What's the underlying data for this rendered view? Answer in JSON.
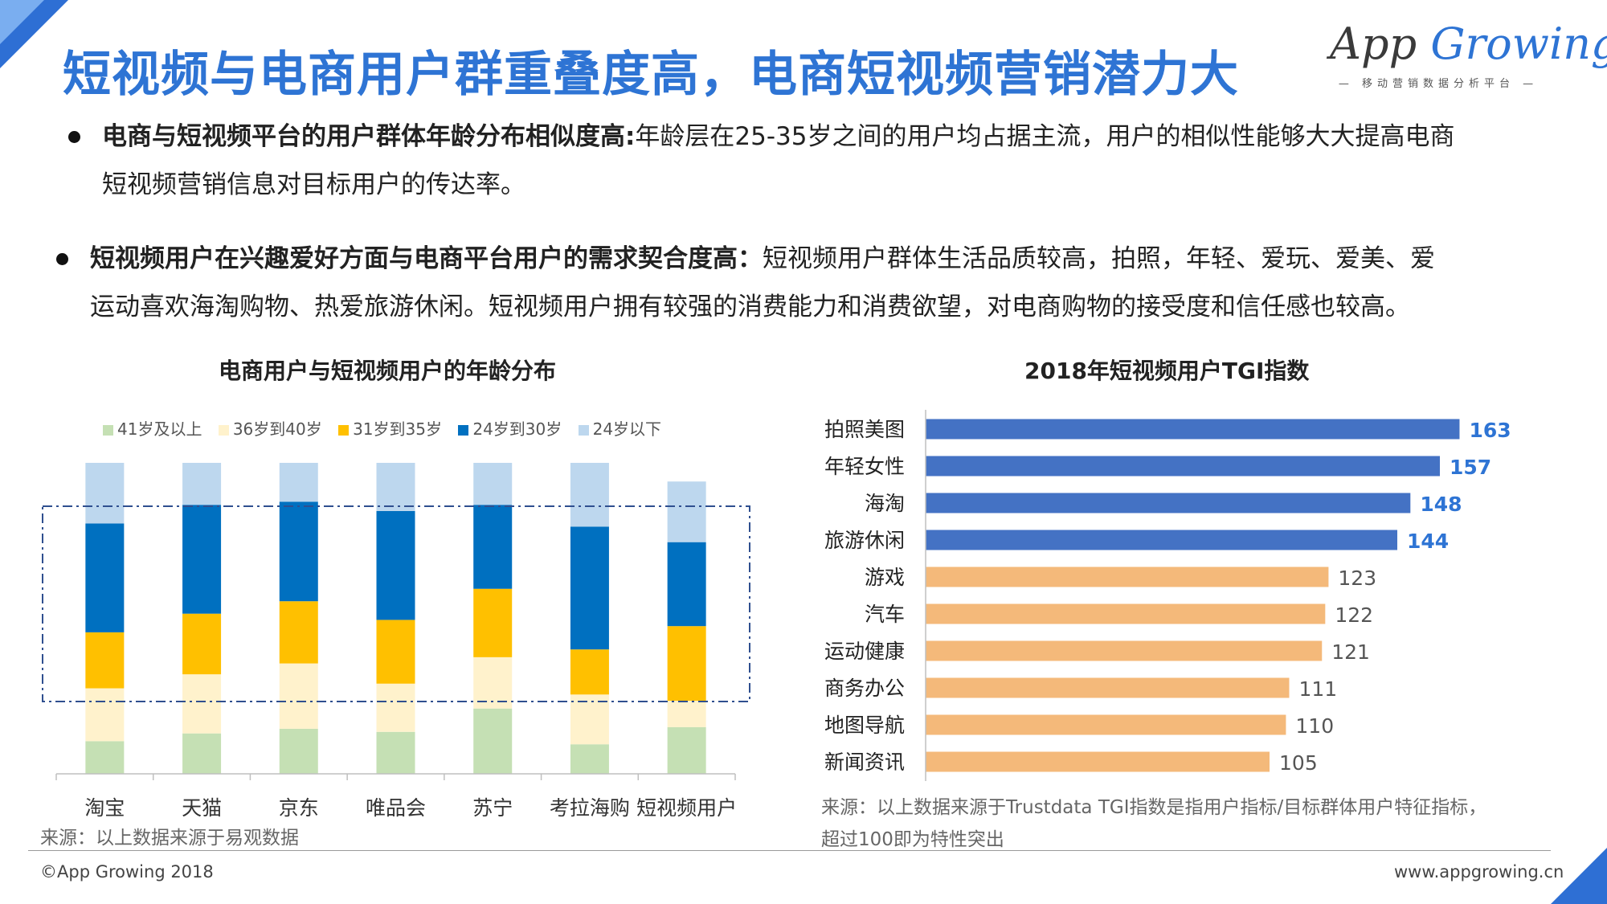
{
  "title": "短视频与电商用户群重叠度高，电商短视频营销潜力大",
  "logo": {
    "main_a": "App",
    "main_b": "Growing",
    "sub": "— 移动营销数据分析平台 —"
  },
  "bullets": [
    {
      "bold": "电商与短视频平台的用户群体年龄分布相似度高:",
      "line1_rest": "年龄层在25-35岁之间的用户均占据主流，用户的相似性能够大大提高电商",
      "line2": "短视频营销信息对目标用户的传达率。"
    },
    {
      "bold": "短视频用户在兴趣爱好方面与电商平台用户的需求契合度高：",
      "line1_rest": "短视频用户群体生活品质较高，拍照，年轻、爱玩、爱美、爱",
      "line2": "运动喜欢海淘购物、热爱旅游休闲。短视频用户拥有较强的消费能力和消费欲望，对电商购物的接受度和信任感也较高。"
    }
  ],
  "colors": {
    "age_41_plus": "#c5e0b4",
    "age_36_40": "#fff2cc",
    "age_31_35": "#ffc000",
    "age_24_30": "#0070c0",
    "age_under_24": "#bdd7ee",
    "tgi_high": "#4472c4",
    "tgi_low": "#f4b97a",
    "tgi_label_high": "#2e74d4"
  },
  "chart_data": [
    {
      "type": "bar",
      "stacked": true,
      "percent": true,
      "title": "电商用户与短视频用户的年龄分布",
      "categories": [
        "淘宝",
        "天猫",
        "京东",
        "唯品会",
        "苏宁",
        "考拉海购",
        "短视频用户"
      ],
      "series": [
        {
          "name": "41岁及以上",
          "values": [
            10.5,
            13,
            14.5,
            13.5,
            21,
            9.5,
            15
          ]
        },
        {
          "name": "36岁到40岁",
          "values": [
            17,
            19,
            21,
            15.5,
            16.5,
            16,
            8.5
          ]
        },
        {
          "name": "31岁到35岁",
          "values": [
            18,
            19.5,
            20,
            20.5,
            22,
            14.5,
            24
          ]
        },
        {
          "name": "24岁到30岁",
          "values": [
            35,
            35,
            32,
            35,
            27,
            39.5,
            27
          ]
        },
        {
          "name": "24岁以下",
          "values": [
            19.5,
            13.5,
            12.5,
            15.5,
            13.5,
            20.5,
            19.5
          ]
        }
      ],
      "ylim": [
        0,
        100
      ],
      "legend": "top",
      "source": "来源：以上数据来源于易观数据"
    },
    {
      "type": "bar",
      "orientation": "horizontal",
      "title": "2018年短视频用户TGI指数",
      "categories": [
        "拍照美图",
        "年轻女性",
        "海淘",
        "旅游休闲",
        "游戏",
        "汽车",
        "运动健康",
        "商务办公",
        "地图导航",
        "新闻资讯"
      ],
      "values": [
        163,
        157,
        148,
        144,
        123,
        122,
        121,
        111,
        110,
        105
      ],
      "highlight_count": 4,
      "xlim": [
        0,
        170
      ],
      "source_line1": "来源：以上数据来源于Trustdata  TGI指数是指用户指标/目标群体用户特征指标，",
      "source_line2": "超过100即为特性突出"
    }
  ],
  "footer": {
    "left": "©App Growing 2018",
    "right": "www.appgrowing.cn"
  }
}
